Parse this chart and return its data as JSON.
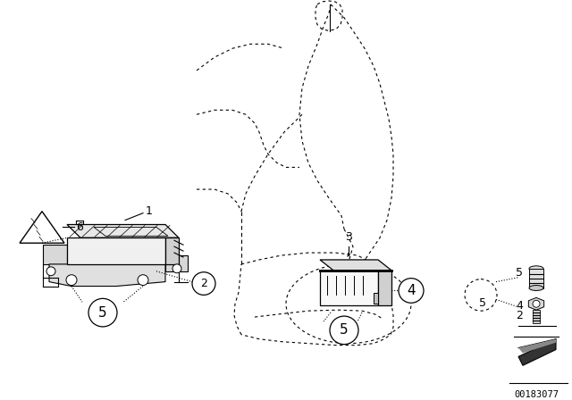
{
  "bg_color": "#ffffff",
  "fig_width": 6.4,
  "fig_height": 4.48,
  "dpi": 100,
  "watermark": "00183077",
  "line_color": "#000000"
}
